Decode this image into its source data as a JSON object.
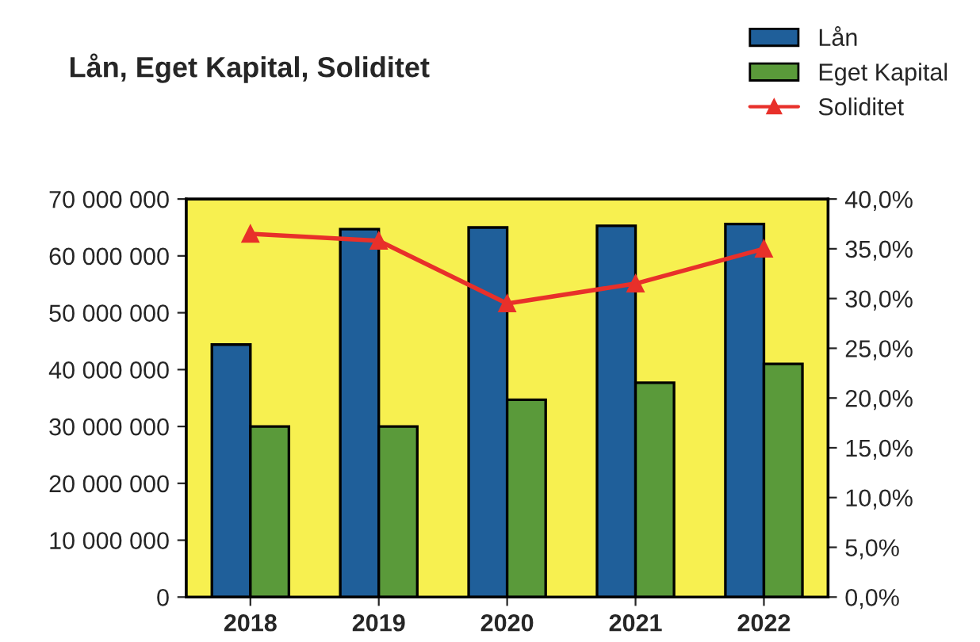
{
  "chart_data": {
    "type": "bar",
    "title": "Lån, Eget Kapital, Soliditet",
    "categories": [
      "2018",
      "2019",
      "2020",
      "2021",
      "2022"
    ],
    "series": [
      {
        "name": "Lån",
        "color": "#1f5f9a",
        "values": [
          44400000,
          64700000,
          65000000,
          65300000,
          65600000
        ]
      },
      {
        "name": "Eget Kapital",
        "color": "#5a9a3a",
        "values": [
          30000000,
          30000000,
          34700000,
          37700000,
          41000000
        ]
      },
      {
        "name": "Soliditet",
        "type": "line",
        "axis": "y2",
        "color": "#e8302a",
        "marker": "triangle",
        "values": [
          36.5,
          35.8,
          29.5,
          31.5,
          35.0
        ]
      }
    ],
    "ylim": [
      0,
      70000000
    ],
    "yticks": [
      {
        "value": 0,
        "label": "0"
      },
      {
        "value": 10000000,
        "label": "10 000 000"
      },
      {
        "value": 20000000,
        "label": "20 000 000"
      },
      {
        "value": 30000000,
        "label": "30 000 000"
      },
      {
        "value": 40000000,
        "label": "40 000 000"
      },
      {
        "value": 50000000,
        "label": "50 000 000"
      },
      {
        "value": 60000000,
        "label": "60 000 000"
      },
      {
        "value": 70000000,
        "label": "70 000 000"
      }
    ],
    "y2lim": [
      0,
      40
    ],
    "y2ticks": [
      {
        "value": 0,
        "label": "0,0%"
      },
      {
        "value": 5,
        "label": "5,0%"
      },
      {
        "value": 10,
        "label": "10,0%"
      },
      {
        "value": 15,
        "label": "15,0%"
      },
      {
        "value": 20,
        "label": "20,0%"
      },
      {
        "value": 25,
        "label": "25,0%"
      },
      {
        "value": 30,
        "label": "30,0%"
      },
      {
        "value": 35,
        "label": "35,0%"
      },
      {
        "value": 40,
        "label": "40,0%"
      }
    ],
    "grid": false,
    "legend": "top right"
  }
}
